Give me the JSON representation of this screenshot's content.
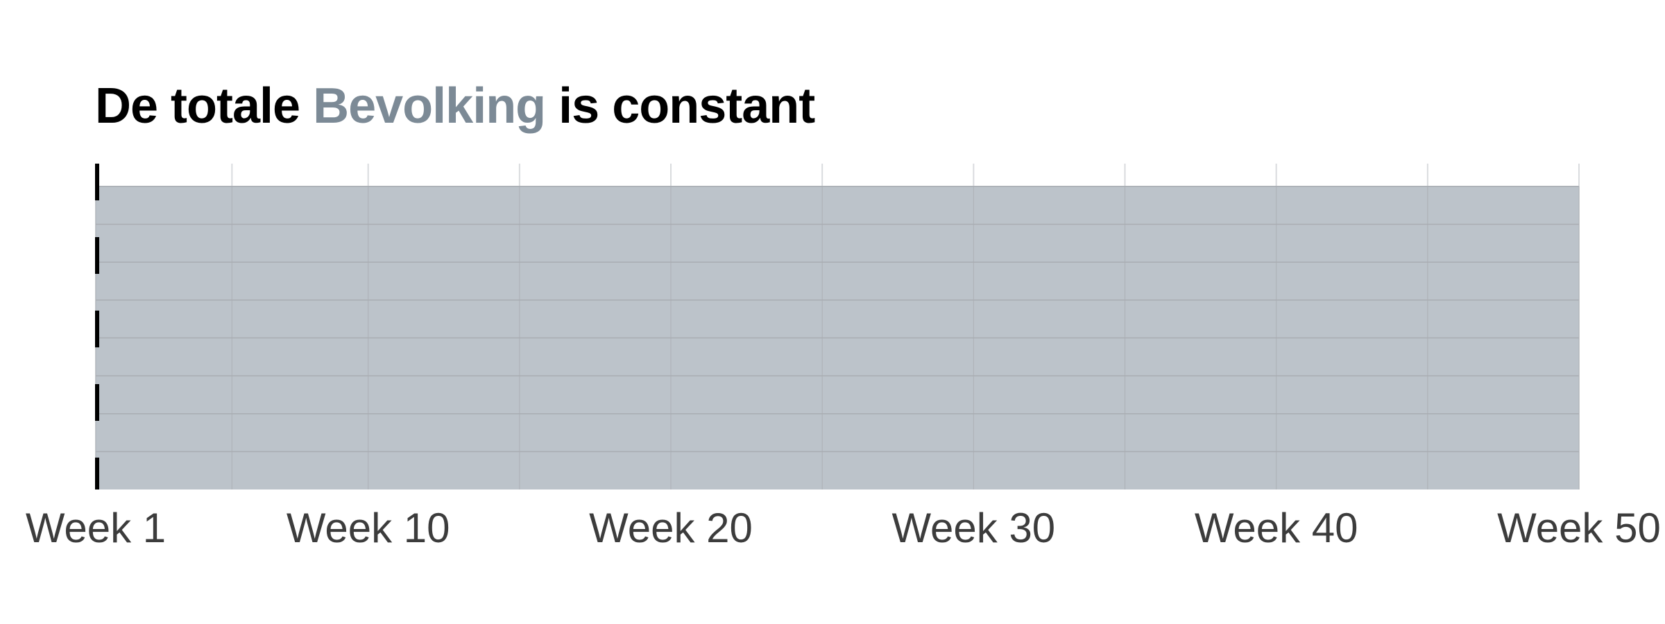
{
  "chart_data": {
    "type": "area",
    "title_parts": [
      "De totale ",
      "Bevolking",
      " is constant"
    ],
    "x_tick_labels": [
      "Week 1",
      "Week 10",
      "Week 20",
      "Week 30",
      "Week 40",
      "Week 50"
    ],
    "x_ticks": [
      1,
      10,
      20,
      30,
      40,
      50
    ],
    "xlim": [
      1,
      50
    ],
    "series": [
      {
        "name": "Bevolking",
        "x": [
          1,
          50
        ],
        "values": [
          1,
          1
        ],
        "color": "#bcc3ca"
      }
    ],
    "ylim": [
      0,
      1.075
    ],
    "grid": true,
    "colors": {
      "title": "#000000",
      "highlight": "#7c8a96",
      "area": "#bcc3ca",
      "gridline": "#a9adb2",
      "axis": "#000000",
      "tick_label": "#3c3c3c"
    }
  }
}
